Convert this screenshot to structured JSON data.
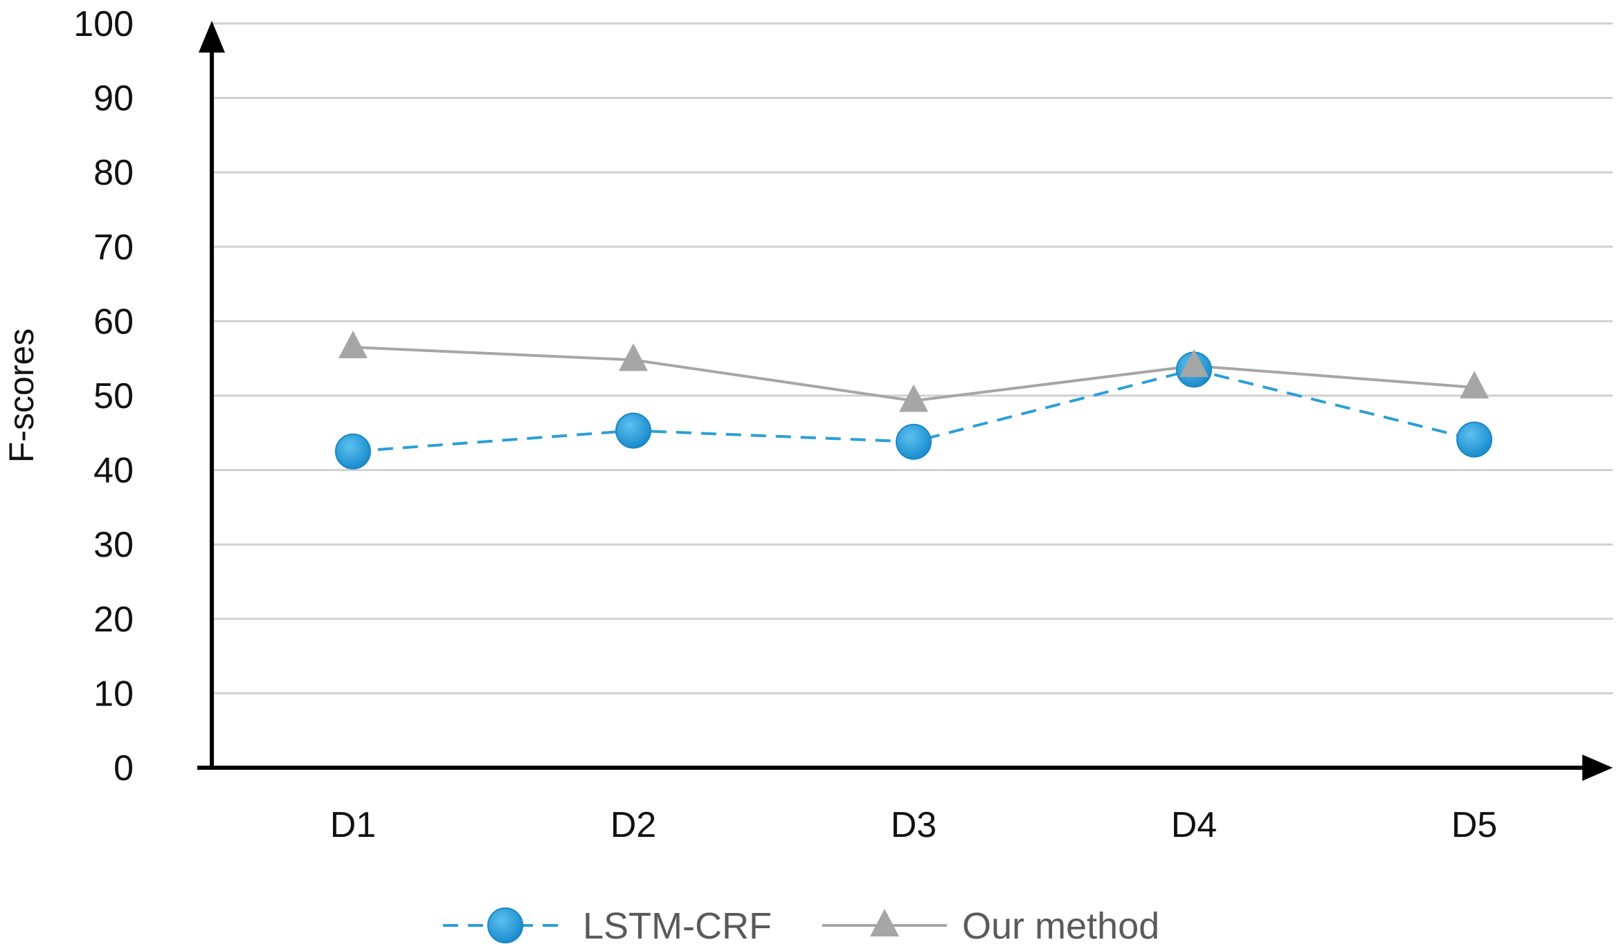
{
  "chart_data": {
    "type": "line",
    "title": "",
    "xlabel": "",
    "ylabel": "F-scores",
    "categories": [
      "D1",
      "D2",
      "D3",
      "D4",
      "D5"
    ],
    "ylim": [
      0,
      100
    ],
    "yticks": [
      0,
      10,
      20,
      30,
      40,
      50,
      60,
      70,
      80,
      90,
      100
    ],
    "grid": true,
    "legend_position": "bottom-center",
    "series": [
      {
        "name": "LSTM-CRF",
        "values": [
          42.5,
          45.3,
          43.8,
          53.5,
          44.1
        ],
        "color": "#2a9fd8",
        "line_style": "dashed",
        "marker": "circle"
      },
      {
        "name": "Our method",
        "values": [
          56.5,
          54.8,
          49.3,
          54.0,
          51.1
        ],
        "color": "#a6a6a6",
        "line_style": "solid",
        "marker": "triangle"
      }
    ]
  }
}
